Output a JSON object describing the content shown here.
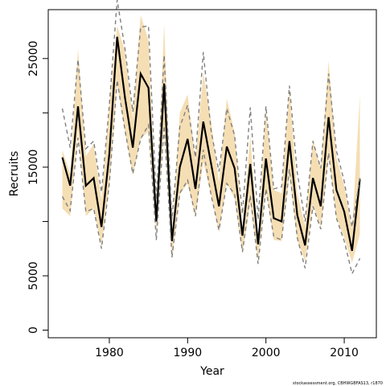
{
  "chart_data": {
    "type": "line",
    "xlabel": "Year",
    "ylabel": "Recruits",
    "x_ticks": [
      1980,
      1990,
      2000,
      2010
    ],
    "y_ticks": [
      0,
      5000,
      15000,
      25000
    ],
    "xlim": [
      1972.2,
      2014.1
    ],
    "ylim": [
      -700,
      29500
    ],
    "credit": "stockassessment.org, CBHWGBFAS13, r1870",
    "x": [
      1974,
      1975,
      1976,
      1977,
      1978,
      1979,
      1980,
      1981,
      1982,
      1983,
      1984,
      1985,
      1986,
      1987,
      1988,
      1989,
      1990,
      1991,
      1992,
      1993,
      1994,
      1995,
      1996,
      1997,
      1998,
      1999,
      2000,
      2001,
      2002,
      2003,
      2004,
      2005,
      2006,
      2007,
      2008,
      2009,
      2010,
      2011,
      2012
    ],
    "series": [
      {
        "role": "estimate",
        "color": "#000000",
        "values": [
          15900,
          13300,
          20600,
          13300,
          14000,
          9500,
          16200,
          27000,
          21400,
          16800,
          23600,
          22300,
          10000,
          22700,
          8200,
          15000,
          17600,
          13000,
          19200,
          15300,
          11400,
          16900,
          14900,
          8700,
          15300,
          7900,
          15800,
          10300,
          10000,
          17400,
          10600,
          7800,
          14000,
          11400,
          19600,
          12900,
          10900,
          7300,
          13900
        ]
      },
      {
        "role": "upper-bound",
        "color": "#808080",
        "values": [
          20400,
          16800,
          24900,
          16700,
          17400,
          12700,
          20700,
          30400,
          25900,
          20100,
          27900,
          28000,
          12000,
          25300,
          10200,
          18700,
          20700,
          15900,
          25600,
          18300,
          14600,
          20400,
          17900,
          10700,
          20500,
          10200,
          20600,
          13000,
          13200,
          22500,
          14500,
          10000,
          17400,
          14900,
          23600,
          16500,
          13700,
          9500,
          14000
        ]
      },
      {
        "role": "lower-bound",
        "color": "#808080",
        "values": [
          12300,
          11000,
          17700,
          10900,
          11200,
          7500,
          13500,
          23000,
          18400,
          14400,
          17600,
          18900,
          8300,
          18800,
          6700,
          12600,
          13800,
          10500,
          16600,
          12400,
          9200,
          13500,
          12500,
          7200,
          12400,
          6100,
          13000,
          8600,
          8300,
          14800,
          8500,
          5700,
          11400,
          9300,
          16300,
          10300,
          8200,
          5200,
          6600
        ]
      }
    ],
    "band": {
      "color": "#f5deb3",
      "upper": [
        16600,
        14400,
        25900,
        16000,
        17100,
        12000,
        20800,
        28000,
        25700,
        19500,
        29000,
        26700,
        10400,
        28200,
        8700,
        20000,
        21700,
        15600,
        23700,
        19200,
        13600,
        21300,
        18200,
        9500,
        17900,
        8400,
        20400,
        12900,
        12600,
        22300,
        12600,
        9600,
        17600,
        14800,
        24800,
        15900,
        13300,
        9300,
        21600
      ],
      "lower": [
        11200,
        10500,
        18400,
        10500,
        11200,
        7800,
        13300,
        22600,
        18200,
        14200,
        17600,
        18300,
        8600,
        18800,
        6400,
        12500,
        13500,
        10400,
        15500,
        12400,
        9000,
        13600,
        12100,
        7000,
        11700,
        6300,
        13000,
        8300,
        8200,
        14300,
        8300,
        6300,
        11600,
        9400,
        16100,
        10400,
        8500,
        6200,
        8800
      ]
    }
  }
}
